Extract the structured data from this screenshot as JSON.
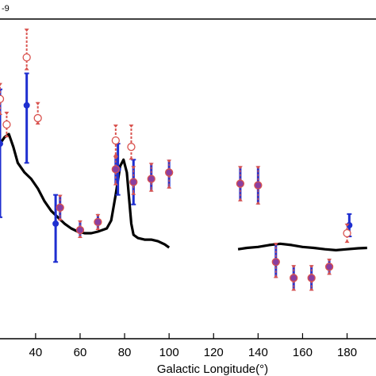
{
  "chart_data": {
    "type": "scatter",
    "title": "",
    "xlabel": "Galactic Longitude(°)",
    "ylabel": "",
    "exponent_label": "-9",
    "xlim": [
      24,
      193
    ],
    "ylim": [
      0,
      1
    ],
    "x_ticks": [
      40,
      60,
      80,
      100,
      120,
      140,
      160,
      180
    ],
    "grid": false,
    "legend": "none",
    "colors": {
      "model_line": "#000000",
      "filled": "#1f2fd0",
      "open": "#d9534f",
      "hybrid_fill": "#8a3fa0"
    },
    "series": [
      {
        "style": "model-line",
        "segments": [
          [
            [
              24,
              0.61
            ],
            [
              26,
              0.63
            ],
            [
              28,
              0.64
            ],
            [
              30,
              0.6
            ],
            [
              32,
              0.55
            ],
            [
              35,
              0.52
            ],
            [
              38,
              0.5
            ],
            [
              41,
              0.47
            ],
            [
              44,
              0.43
            ],
            [
              47,
              0.4
            ],
            [
              50,
              0.38
            ],
            [
              53,
              0.36
            ],
            [
              56,
              0.345
            ],
            [
              59,
              0.335
            ],
            [
              62,
              0.33
            ],
            [
              65,
              0.33
            ],
            [
              68,
              0.335
            ],
            [
              70,
              0.34
            ],
            [
              72,
              0.345
            ],
            [
              74,
              0.37
            ],
            [
              76,
              0.45
            ],
            [
              78,
              0.54
            ],
            [
              79.5,
              0.56
            ],
            [
              81,
              0.52
            ],
            [
              82,
              0.44
            ],
            [
              83,
              0.36
            ],
            [
              84,
              0.325
            ],
            [
              86,
              0.315
            ],
            [
              89,
              0.31
            ],
            [
              92,
              0.31
            ],
            [
              95,
              0.305
            ],
            [
              98,
              0.295
            ],
            [
              100,
              0.285
            ]
          ],
          [
            [
              131,
              0.28
            ],
            [
              135,
              0.284
            ],
            [
              140,
              0.287
            ],
            [
              145,
              0.293
            ],
            [
              150,
              0.297
            ],
            [
              155,
              0.293
            ],
            [
              160,
              0.287
            ],
            [
              165,
              0.284
            ],
            [
              170,
              0.28
            ],
            [
              175,
              0.277
            ],
            [
              180,
              0.28
            ],
            [
              185,
              0.283
            ],
            [
              189,
              0.284
            ]
          ]
        ]
      },
      {
        "style": "filled",
        "points": [
          {
            "x": 24,
            "y": 0.61,
            "lo": 0.38,
            "hi": 0.78
          },
          {
            "x": 36,
            "y": 0.73,
            "lo": 0.55,
            "hi": 0.83
          },
          {
            "x": 49,
            "y": 0.36,
            "lo": 0.24,
            "hi": 0.45
          },
          {
            "x": 77,
            "y": 0.53,
            "lo": 0.45,
            "hi": 0.61
          },
          {
            "x": 84,
            "y": 0.49,
            "lo": 0.42,
            "hi": 0.56
          },
          {
            "x": 181,
            "y": 0.355,
            "lo": 0.32,
            "hi": 0.39
          }
        ]
      },
      {
        "style": "open",
        "points": [
          {
            "x": 24,
            "y": 0.75,
            "lo": 0.7,
            "hi": 0.8
          },
          {
            "x": 27,
            "y": 0.67,
            "lo": 0.63,
            "hi": 0.71
          },
          {
            "x": 36,
            "y": 0.88,
            "lo": 0.84,
            "hi": 0.97
          },
          {
            "x": 41,
            "y": 0.69,
            "lo": 0.67,
            "hi": 0.74
          },
          {
            "x": 76,
            "y": 0.62,
            "lo": 0.57,
            "hi": 0.67
          },
          {
            "x": 83,
            "y": 0.6,
            "lo": 0.56,
            "hi": 0.67
          },
          {
            "x": 180,
            "y": 0.33,
            "lo": 0.3,
            "hi": 0.36
          }
        ]
      },
      {
        "style": "hybrid",
        "points": [
          {
            "x": 51,
            "y": 0.41,
            "lo": 0.37,
            "hi": 0.45
          },
          {
            "x": 60,
            "y": 0.34,
            "lo": 0.315,
            "hi": 0.37
          },
          {
            "x": 68,
            "y": 0.365,
            "lo": 0.34,
            "hi": 0.39
          },
          {
            "x": 76,
            "y": 0.53,
            "lo": 0.48,
            "hi": 0.57
          },
          {
            "x": 84,
            "y": 0.49,
            "lo": 0.45,
            "hi": 0.54
          },
          {
            "x": 92,
            "y": 0.5,
            "lo": 0.46,
            "hi": 0.55
          },
          {
            "x": 100,
            "y": 0.52,
            "lo": 0.47,
            "hi": 0.56
          },
          {
            "x": 132,
            "y": 0.485,
            "lo": 0.43,
            "hi": 0.54
          },
          {
            "x": 140,
            "y": 0.48,
            "lo": 0.42,
            "hi": 0.54
          },
          {
            "x": 148,
            "y": 0.24,
            "lo": 0.19,
            "hi": 0.3
          },
          {
            "x": 156,
            "y": 0.19,
            "lo": 0.15,
            "hi": 0.23
          },
          {
            "x": 164,
            "y": 0.19,
            "lo": 0.15,
            "hi": 0.23
          },
          {
            "x": 172,
            "y": 0.225,
            "lo": 0.2,
            "hi": 0.25
          }
        ]
      }
    ]
  }
}
